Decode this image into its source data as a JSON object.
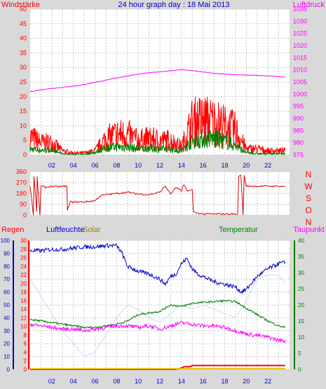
{
  "title": "24 hour graph day : 18 Mai 2013",
  "colors": {
    "background": "#d9d9d9",
    "plot_bg": "#ffffff",
    "grid": "#c9c9c9",
    "wind": "#ff0000",
    "gust_dark": "#cc0000",
    "pressure": "#ff00ff",
    "wind_avg": "#008000",
    "direction": "#dd0000",
    "humidity": "#0000cc",
    "solar": "#c8d8ff",
    "temperature": "#008000",
    "dewpoint": "#ff00ff",
    "rain": "#ff0000",
    "rain_rate": "#e8c000"
  },
  "chart_data": [
    {
      "type": "line",
      "panel": "wind-pressure",
      "left_label": "Windstärke",
      "right_label": "Luftdruck",
      "left_ylim": [
        0,
        50
      ],
      "left_ticks": [
        "0",
        "5",
        "10",
        "15",
        "20",
        "25",
        "30",
        "35",
        "40",
        "45",
        "50"
      ],
      "right_ylim": [
        975,
        1035
      ],
      "right_ticks": [
        "975",
        "980",
        "985",
        "990",
        "995",
        "1000",
        "1005",
        "1010",
        "1015",
        "1020",
        "1025",
        "1030",
        "1035"
      ],
      "x_ticks": [
        "02",
        "04",
        "06",
        "08",
        "10",
        "12",
        "14",
        "16",
        "18",
        "20",
        "22"
      ],
      "xlim": [
        0,
        24
      ],
      "series": [
        {
          "key": "gust",
          "x": [
            0,
            1,
            2,
            3,
            4,
            5,
            6,
            7,
            8,
            9,
            10,
            11,
            12,
            13,
            14,
            15,
            16,
            17,
            18,
            19,
            20,
            21,
            22,
            23.6
          ],
          "values": [
            9,
            6,
            6,
            2,
            1,
            1,
            2,
            8,
            10,
            10,
            7,
            8,
            7,
            7,
            4,
            16,
            17,
            16,
            14,
            12,
            3,
            3,
            2,
            2
          ]
        },
        {
          "key": "wind",
          "x": [
            0,
            1,
            2,
            3,
            4,
            5,
            6,
            7,
            8,
            9,
            10,
            11,
            12,
            13,
            14,
            15,
            16,
            17,
            18,
            19,
            20,
            21,
            22,
            23.6
          ],
          "values": [
            2.5,
            2,
            2,
            0.5,
            0.3,
            0.3,
            1,
            3,
            3.5,
            3.5,
            2.5,
            3,
            2.5,
            2.5,
            1.5,
            6,
            7,
            7,
            6,
            4,
            1,
            0.5,
            0.5,
            0.5
          ]
        },
        {
          "key": "pressure",
          "x": [
            0,
            1,
            2,
            3,
            4,
            5,
            6,
            7,
            8,
            9,
            10,
            11,
            12,
            13,
            14,
            15,
            16,
            17,
            18,
            19,
            20,
            21,
            22,
            23,
            23.6
          ],
          "values": [
            1001,
            1001.8,
            1002.4,
            1002.8,
            1003.3,
            1004,
            1004.8,
            1005.8,
            1006.7,
            1007.5,
            1008.2,
            1008.8,
            1009.2,
            1009.6,
            1010.1,
            1009.7,
            1009.1,
            1008.6,
            1008.2,
            1008,
            1007.8,
            1007.7,
            1007.5,
            1007.3,
            1007
          ]
        }
      ]
    },
    {
      "type": "line",
      "panel": "wind-direction",
      "left_ylim": [
        0,
        360
      ],
      "left_ticks": [
        "0",
        "90",
        "180",
        "270",
        "360"
      ],
      "right_ticks": [
        "N",
        "W",
        "S",
        "O",
        "N"
      ],
      "xlim": [
        0,
        24
      ],
      "series": [
        {
          "key": "direction",
          "x": [
            0,
            0.3,
            0.35,
            0.6,
            0.65,
            0.9,
            1.0,
            1.5,
            2,
            2.5,
            3,
            3.4,
            3.45,
            3.7,
            4,
            5,
            6,
            6.5,
            7,
            8,
            9,
            10,
            11,
            12,
            12.5,
            13,
            13.5,
            14,
            14.2,
            14.6,
            15,
            15.1,
            15.3,
            16,
            17,
            18,
            19,
            19.2,
            19.3,
            19.5,
            19.7,
            19.8,
            20,
            21,
            22,
            23,
            23.6
          ],
          "values": [
            240,
            0,
            320,
            30,
            320,
            0,
            240,
            230,
            240,
            235,
            240,
            240,
            40,
            110,
            110,
            110,
            120,
            160,
            170,
            180,
            190,
            175,
            170,
            190,
            240,
            175,
            230,
            200,
            250,
            200,
            210,
            30,
            20,
            10,
            10,
            10,
            10,
            10,
            320,
            330,
            0,
            330,
            240,
            240,
            240,
            240,
            240
          ]
        }
      ]
    },
    {
      "type": "line",
      "panel": "rain-humidity-temperature",
      "labels": {
        "rain": "Regen",
        "humidity": "Luftfeuchte",
        "solar": "Solar",
        "temperature": "Temperatur",
        "dewpoint": "Taupunkt"
      },
      "rain_ylim": [
        0,
        100
      ],
      "rain_ticks": [
        "0",
        "10",
        "20",
        "30",
        "40",
        "50",
        "60",
        "70",
        "80",
        "90",
        "100"
      ],
      "humidity_ylim": [
        0,
        30
      ],
      "humidity_ticks": [
        "0",
        "2",
        "4",
        "6",
        "8",
        "10",
        "12",
        "14",
        "16",
        "18",
        "20",
        "22",
        "24",
        "26",
        "28",
        "30"
      ],
      "temp_ylim": [
        0,
        40
      ],
      "temp_ticks": [
        "0",
        "5",
        "10",
        "15",
        "20",
        "25",
        "30",
        "35",
        "40"
      ],
      "xlim": [
        0,
        24
      ],
      "series": [
        {
          "key": "humidity",
          "unit_axis": "rain",
          "x": [
            0,
            1,
            2,
            3,
            4,
            5,
            6,
            7,
            8,
            8.5,
            9,
            10,
            11,
            12,
            12.5,
            13,
            13.5,
            14,
            14.5,
            15,
            15.5,
            16,
            17,
            18,
            19,
            19.5,
            20,
            21,
            22,
            23,
            23.6
          ],
          "values": [
            92,
            92,
            93,
            93,
            94,
            95,
            95,
            96,
            96,
            90,
            80,
            76,
            74,
            70,
            66,
            72,
            74,
            82,
            86,
            78,
            74,
            72,
            68,
            66,
            64,
            60,
            62,
            72,
            78,
            82,
            83
          ]
        },
        {
          "key": "solar",
          "unit_axis": "humidity",
          "x": [
            0,
            1,
            2,
            3,
            4,
            5,
            6,
            7,
            8,
            9,
            10,
            11,
            12,
            13,
            14,
            15,
            16,
            17,
            18,
            19,
            20,
            21,
            22,
            23,
            23.6
          ],
          "values": [
            21,
            17,
            13,
            9,
            6,
            3,
            4,
            8,
            12,
            15,
            14,
            12,
            11,
            13,
            15,
            14,
            15,
            14,
            13,
            12,
            16,
            21,
            22,
            22,
            20
          ]
        },
        {
          "key": "temperature",
          "unit_axis": "temp",
          "x": [
            0,
            1,
            2,
            3,
            4,
            5,
            6,
            7,
            8,
            9,
            10,
            11,
            12,
            13,
            14,
            15,
            16,
            17,
            18,
            19,
            20,
            21,
            22,
            23,
            23.6
          ],
          "values": [
            15.5,
            15,
            14.5,
            14,
            13.5,
            13,
            13,
            13.5,
            14,
            15,
            17,
            17.5,
            18,
            20,
            19.5,
            20.5,
            20.8,
            21,
            21.3,
            21,
            19,
            17,
            15,
            13.5,
            13
          ]
        },
        {
          "key": "dewpoint",
          "unit_axis": "temp",
          "x": [
            0,
            1,
            2,
            3,
            4,
            5,
            6,
            7,
            8,
            9,
            10,
            11,
            12,
            13,
            14,
            15,
            16,
            17,
            18,
            19,
            20,
            21,
            22,
            23,
            23.6
          ],
          "values": [
            14,
            13.5,
            13,
            12.5,
            12.5,
            12,
            12.5,
            13,
            13.5,
            13.5,
            13,
            13.5,
            12.5,
            13.5,
            14.5,
            14,
            13.5,
            13.5,
            13,
            12,
            11,
            10.5,
            10,
            9,
            8.8
          ]
        },
        {
          "key": "rain",
          "unit_axis": "rain",
          "x": [
            0,
            13.5,
            14,
            14.2,
            14.8,
            15,
            23.6
          ],
          "values": [
            0,
            0,
            1,
            2,
            2,
            3,
            3
          ]
        },
        {
          "key": "rain_rate",
          "unit_axis": "rain",
          "x": [
            0,
            23.6
          ],
          "values": [
            0.5,
            0.5
          ]
        }
      ]
    }
  ]
}
